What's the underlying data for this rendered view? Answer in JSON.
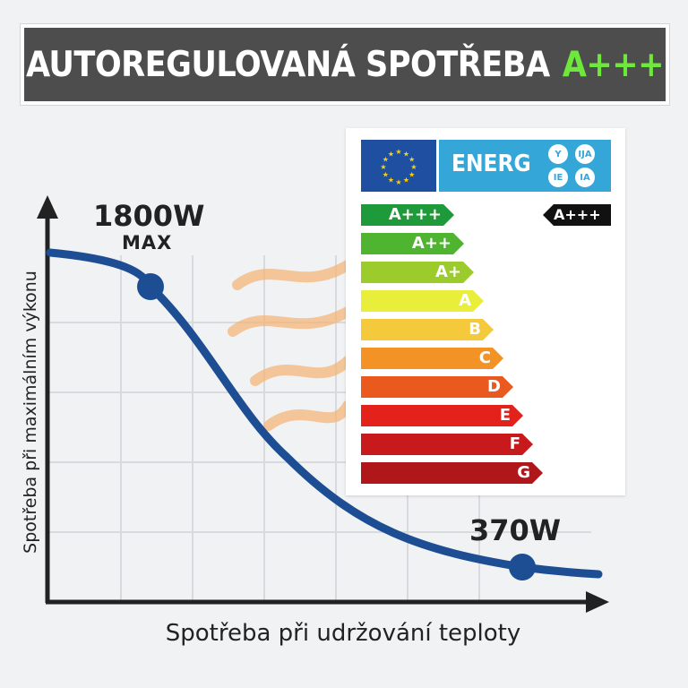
{
  "title": {
    "main": "AUTOREGULOVANÁ SPOTŘEBA",
    "accent": "A+++"
  },
  "chart_data": {
    "type": "line",
    "xlabel": "Spotřeba při udržování teploty",
    "ylabel": "Spotřeba při maximálním výkonu",
    "grid": true,
    "series": [
      {
        "values": []
      }
    ],
    "points": [
      {
        "label": "1800W",
        "sub": "MAX",
        "value": 1800
      },
      {
        "label": "370W",
        "value": 370
      }
    ]
  },
  "energy_label": {
    "header": "ENERG",
    "lang_codes": [
      "Y",
      "IJA",
      "IE",
      "IA"
    ],
    "classes": [
      {
        "label": "A+++",
        "color": "#1f9a3a"
      },
      {
        "label": "A++",
        "color": "#4fb531"
      },
      {
        "label": "A+",
        "color": "#9ccc2c"
      },
      {
        "label": "A",
        "color": "#e8ee3a"
      },
      {
        "label": "B",
        "color": "#f5c93c"
      },
      {
        "label": "C",
        "color": "#f39325"
      },
      {
        "label": "D",
        "color": "#ea5a1f"
      },
      {
        "label": "E",
        "color": "#e3221b"
      },
      {
        "label": "F",
        "color": "#c81a1d"
      },
      {
        "label": "G",
        "color": "#b0171a"
      }
    ],
    "rating": "A+++"
  },
  "colors": {
    "curve": "#1d4e94",
    "accent": "#6ee83a",
    "heat": "#f3b57a"
  }
}
